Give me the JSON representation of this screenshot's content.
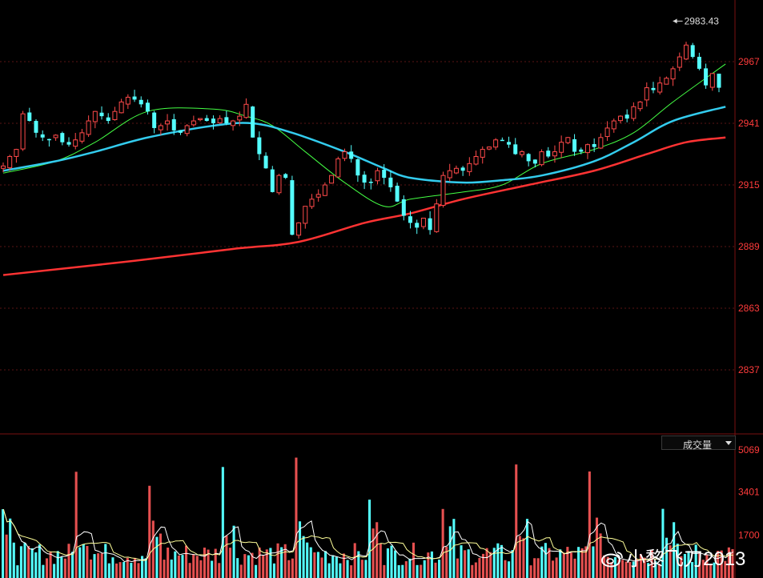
{
  "chart_data": [
    {
      "type": "candlestick",
      "panel": "price",
      "y_ticks": [
        2837,
        2863,
        2889,
        2915,
        2941,
        2967
      ],
      "y_range": [
        2810,
        2993
      ],
      "grid": "dotted-horizontal",
      "annotation": {
        "label": "2983.43",
        "value": 2983.43,
        "at_bar": 102
      },
      "bars": 110,
      "up_color": "#ff4a4a",
      "down_color": "#54ffff",
      "closes": [
        2923,
        2927,
        2930,
        2945,
        2942,
        2937,
        2935,
        2934,
        2936,
        2933,
        2932,
        2934,
        2937,
        2942,
        2946,
        2944,
        2942,
        2946,
        2950,
        2952,
        2951,
        2949,
        2946,
        2939,
        2940,
        2942,
        2938,
        2937,
        2940,
        2942,
        2943,
        2942,
        2941,
        2943,
        2941,
        2942,
        2944,
        2949,
        2935,
        2928,
        2922,
        2912,
        2919,
        2918,
        2894,
        2899,
        2906,
        2909,
        2911,
        2915,
        2919,
        2926,
        2929,
        2926,
        2919,
        2916,
        2916,
        2921,
        2918,
        2914,
        2908,
        2902,
        2899,
        2897,
        2901,
        2896,
        2907,
        2919,
        2921,
        2922,
        2921,
        2924,
        2927,
        2930,
        2931,
        2934,
        2934,
        2932,
        2928,
        2929,
        2925,
        2924,
        2929,
        2927,
        2929,
        2933,
        2935,
        2929,
        2929,
        2932,
        2931,
        2935,
        2939,
        2942,
        2944,
        2943,
        2948,
        2950,
        2956,
        2955,
        2958,
        2960,
        2964,
        2969,
        2974,
        2969,
        2964,
        2957,
        2962,
        2956
      ],
      "moving_averages": [
        {
          "color": "#44ff44",
          "points": [
            [
              0,
              2920
            ],
            [
              8,
              2925
            ],
            [
              14,
              2933
            ],
            [
              22,
              2946
            ],
            [
              32,
              2947
            ],
            [
              37,
              2944
            ],
            [
              41,
              2940
            ],
            [
              46,
              2929
            ],
            [
              52,
              2916
            ],
            [
              58,
              2906
            ],
            [
              62,
              2909
            ],
            [
              70,
              2912
            ],
            [
              76,
              2915
            ],
            [
              82,
              2924
            ],
            [
              90,
              2930
            ],
            [
              96,
              2937
            ],
            [
              102,
              2950
            ],
            [
              110,
              2966
            ]
          ]
        },
        {
          "color": "#33ccee",
          "points": [
            [
              0,
              2921
            ],
            [
              8,
              2925
            ],
            [
              14,
              2929
            ],
            [
              22,
              2935
            ],
            [
              32,
              2940
            ],
            [
              38,
              2941
            ],
            [
              44,
              2937
            ],
            [
              52,
              2929
            ],
            [
              58,
              2922
            ],
            [
              62,
              2918
            ],
            [
              70,
              2916
            ],
            [
              76,
              2917
            ],
            [
              82,
              2919
            ],
            [
              90,
              2925
            ],
            [
              96,
              2933
            ],
            [
              102,
              2942
            ],
            [
              110,
              2948
            ]
          ]
        },
        {
          "color": "#ff3333",
          "points": [
            [
              0,
              2877
            ],
            [
              20,
              2883
            ],
            [
              35,
              2888
            ],
            [
              45,
              2891
            ],
            [
              55,
              2899
            ],
            [
              62,
              2903
            ],
            [
              70,
              2909
            ],
            [
              80,
              2915
            ],
            [
              90,
              2921
            ],
            [
              98,
              2928
            ],
            [
              104,
              2933
            ],
            [
              110,
              2935
            ]
          ]
        }
      ]
    },
    {
      "type": "bar",
      "panel": "volume",
      "dropdown_label": "成交量",
      "y_ticks": [
        1700,
        3401,
        5069
      ],
      "y_range": [
        0,
        5069
      ],
      "color_up": "#e65050",
      "color_down": "#54ffff",
      "line_colors": [
        "#ffffff",
        "#ffff99"
      ]
    }
  ],
  "watermark": {
    "text": "小黎飞刀2013"
  }
}
